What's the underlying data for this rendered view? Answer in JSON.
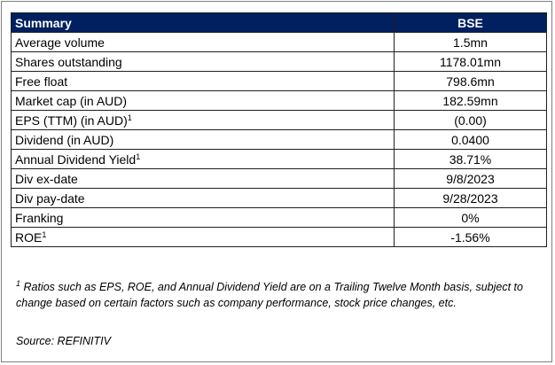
{
  "table": {
    "header": {
      "label": "Summary",
      "value": "BSE"
    },
    "rows": [
      {
        "label": "Average volume",
        "sup": "",
        "value": "1.5mn"
      },
      {
        "label": "Shares outstanding",
        "sup": "",
        "value": "1178.01mn"
      },
      {
        "label": "Free float",
        "sup": "",
        "value": "798.6mn"
      },
      {
        "label": "Market cap (in AUD)",
        "sup": "",
        "value": "182.59mn"
      },
      {
        "label": "EPS (TTM) (in AUD)",
        "sup": "1",
        "value": "(0.00)"
      },
      {
        "label": "Dividend (in AUD)",
        "sup": "",
        "value": "0.0400"
      },
      {
        "label": "Annual Dividend Yield",
        "sup": "1",
        "value": "38.71%"
      },
      {
        "label": "Div ex-date",
        "sup": "",
        "value": "9/8/2023"
      },
      {
        "label": "Div pay-date",
        "sup": "",
        "value": "9/28/2023"
      },
      {
        "label": "Franking",
        "sup": "",
        "value": "0%"
      },
      {
        "label": "ROE",
        "sup": "1",
        "value": "-1.56%"
      }
    ]
  },
  "footnote": {
    "marker": "1",
    "text": " Ratios such as EPS, ROE, and Annual Dividend Yield are on a Trailing Twelve Month basis, subject to change based on certain factors such as company performance, stock price changes, etc."
  },
  "source": "Source: REFINITIV",
  "colors": {
    "header_bg": "#002060",
    "header_text": "#ffffff",
    "border": "#1f1f1f"
  }
}
